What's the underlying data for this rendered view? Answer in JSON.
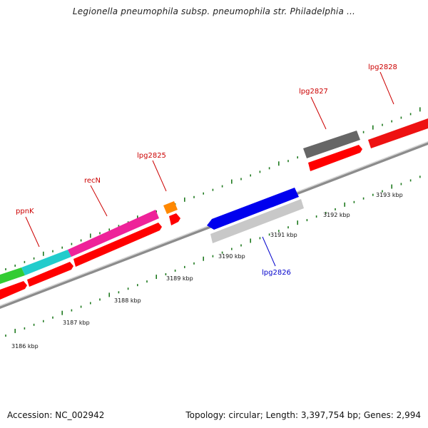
{
  "title": "Legionella pneumophila subsp. pneumophila str. Philadelphia ...",
  "footer": {
    "accession": "Accession: NC_002942",
    "topology": "Topology: circular; Length: 3,397,754 bp; Genes: 2,994"
  },
  "colors": {
    "backbone": "#8c8c8c",
    "ticks": "#1f7a1f",
    "cds_arrow": "#ff0000",
    "label_red": "#cc0000",
    "label_blue": "#0000cc"
  },
  "scale_labels": [
    "3186 kbp",
    "3187 kbp",
    "3188 kbp",
    "3189 kbp",
    "3190 kbp",
    "3191 kbp",
    "3192 kbp",
    "3193 kbp"
  ],
  "genes": [
    {
      "name": "ppnK",
      "color": "#cc0000"
    },
    {
      "name": "recN",
      "color": "#cc0000"
    },
    {
      "name": "lpg2825",
      "color": "#cc0000"
    },
    {
      "name": "lpg2826",
      "color": "#0000cc"
    },
    {
      "name": "lpg2827",
      "color": "#cc0000"
    },
    {
      "name": "lpg2828",
      "color": "#cc0000"
    }
  ]
}
